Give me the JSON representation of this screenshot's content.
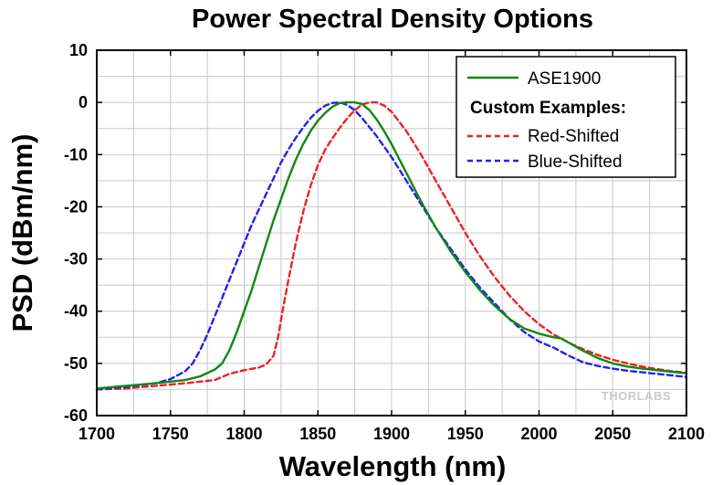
{
  "chart_data": {
    "type": "line",
    "title": "Power Spectral Density Options",
    "xlabel": "Wavelength (nm)",
    "ylabel": "PSD (dBm/nm)",
    "xlim": [
      1700,
      2100
    ],
    "ylim": [
      -60,
      10
    ],
    "xticks": [
      1700,
      1750,
      1800,
      1850,
      1900,
      1950,
      2000,
      2050,
      2100
    ],
    "yticks": [
      10,
      0,
      -10,
      -20,
      -30,
      -40,
      -50,
      -60
    ],
    "grid": true,
    "legend_position": "top-right",
    "legend_heading": "Custom Examples:",
    "watermark": "THORLABS",
    "series": [
      {
        "name": "ASE1900",
        "color": "#118811",
        "dash": "solid",
        "x": [
          1700,
          1720,
          1740,
          1760,
          1770,
          1780,
          1785,
          1790,
          1795,
          1800,
          1805,
          1810,
          1815,
          1820,
          1825,
          1830,
          1835,
          1840,
          1845,
          1850,
          1855,
          1860,
          1865,
          1870,
          1875,
          1880,
          1885,
          1890,
          1895,
          1900,
          1910,
          1920,
          1930,
          1940,
          1950,
          1960,
          1970,
          1980,
          1990,
          2000,
          2010,
          2015,
          2020,
          2030,
          2040,
          2050,
          2060,
          2070,
          2080,
          2090,
          2100
        ],
        "y": [
          -54.8,
          -54.3,
          -53.8,
          -53.2,
          -52.5,
          -51.2,
          -50,
          -47.5,
          -44,
          -40,
          -36,
          -31.5,
          -27,
          -22.5,
          -18.5,
          -14.5,
          -11,
          -8,
          -5.5,
          -3.5,
          -2,
          -0.8,
          -0.1,
          0,
          0,
          -0.3,
          -1.5,
          -3.3,
          -5.5,
          -8,
          -13.5,
          -19,
          -24,
          -28.5,
          -32.5,
          -36,
          -39,
          -41.5,
          -43.3,
          -44.3,
          -45,
          -45.2,
          -46,
          -47.6,
          -49,
          -50,
          -50.6,
          -51,
          -51.3,
          -51.6,
          -51.9
        ]
      },
      {
        "name": "Red-Shifted",
        "color": "#ee2222",
        "dash": "dashed",
        "x": [
          1700,
          1720,
          1740,
          1760,
          1780,
          1790,
          1800,
          1810,
          1815,
          1820,
          1823,
          1826,
          1830,
          1835,
          1840,
          1845,
          1850,
          1855,
          1860,
          1865,
          1870,
          1875,
          1880,
          1885,
          1890,
          1895,
          1900,
          1910,
          1920,
          1930,
          1940,
          1950,
          1960,
          1970,
          1980,
          1990,
          2000,
          2010,
          2020,
          2030,
          2040,
          2050,
          2060,
          2070,
          2080,
          2090,
          2100
        ],
        "y": [
          -55,
          -54.8,
          -54.3,
          -53.8,
          -53.2,
          -52,
          -51.3,
          -50.8,
          -50.2,
          -48.5,
          -45,
          -40,
          -34,
          -27,
          -21,
          -16,
          -12,
          -9,
          -6.8,
          -4.8,
          -3,
          -1.5,
          -0.4,
          0,
          0,
          -0.6,
          -1.8,
          -5.5,
          -10,
          -15,
          -20,
          -25,
          -29.5,
          -33.5,
          -37,
          -40,
          -42.5,
          -44.5,
          -46,
          -47.3,
          -48.4,
          -49.3,
          -50,
          -50.6,
          -51.1,
          -51.5,
          -51.8
        ]
      },
      {
        "name": "Blue-Shifted",
        "color": "#2222ee",
        "dash": "dashed",
        "x": [
          1700,
          1720,
          1740,
          1750,
          1760,
          1765,
          1770,
          1775,
          1780,
          1785,
          1790,
          1795,
          1800,
          1805,
          1810,
          1815,
          1820,
          1825,
          1830,
          1835,
          1840,
          1845,
          1850,
          1855,
          1860,
          1865,
          1870,
          1875,
          1880,
          1890,
          1900,
          1910,
          1920,
          1930,
          1940,
          1950,
          1960,
          1970,
          1980,
          1990,
          2000,
          2010,
          2020,
          2030,
          2040,
          2050,
          2060,
          2070,
          2080,
          2090,
          2100
        ],
        "y": [
          -55,
          -54.5,
          -53.8,
          -53,
          -51.5,
          -50,
          -47.5,
          -44.5,
          -41,
          -37.5,
          -34,
          -30.5,
          -27,
          -23.5,
          -20.5,
          -17.5,
          -14.5,
          -11.5,
          -9,
          -6.8,
          -4.8,
          -3,
          -1.6,
          -0.6,
          -0.1,
          0,
          -0.5,
          -1.5,
          -3,
          -6.5,
          -10.5,
          -15,
          -19.5,
          -24,
          -28,
          -32,
          -35.5,
          -38.5,
          -41.5,
          -44,
          -45.8,
          -47,
          -48.5,
          -49.8,
          -50.5,
          -51,
          -51.4,
          -51.7,
          -52,
          -52.3,
          -52.6
        ]
      }
    ]
  }
}
